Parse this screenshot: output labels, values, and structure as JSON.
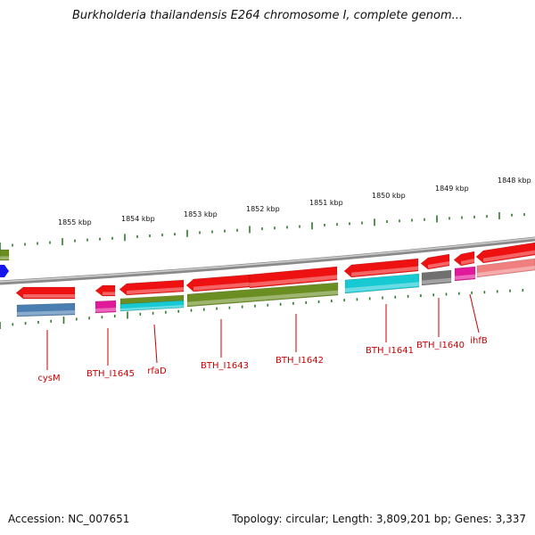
{
  "title": "Burkholderia thailandensis E264 chromosome I, complete genom...",
  "footer": {
    "accession_label": "Accession: NC_007651",
    "topology_label": "Topology: circular; Length: 3,809,201 bp; Genes: 3,337"
  },
  "kbp_labels": [
    "1848 kbp",
    "1849 kbp",
    "1850 kbp",
    "1851 kbp",
    "1852 kbp",
    "1853 kbp",
    "1854 kbp",
    "1855 kbp"
  ],
  "gene_labels": [
    "cysM",
    "BTH_I1645",
    "rfaD",
    "BTH_I1643",
    "BTH_I1642",
    "BTH_I1641",
    "BTH_I1640",
    "ihfB"
  ],
  "colors": {
    "red": "#ee1111",
    "olive": "#6b8e23",
    "cyan": "#17c9d3",
    "magenta": "#e0189a",
    "steelblue": "#4a7eb0",
    "gray": "#707070",
    "pink": "#f08080",
    "blue": "#1515ee",
    "tick": "#2a7a2a",
    "backbone": "#8a8a8a",
    "label": "#cc0000"
  }
}
